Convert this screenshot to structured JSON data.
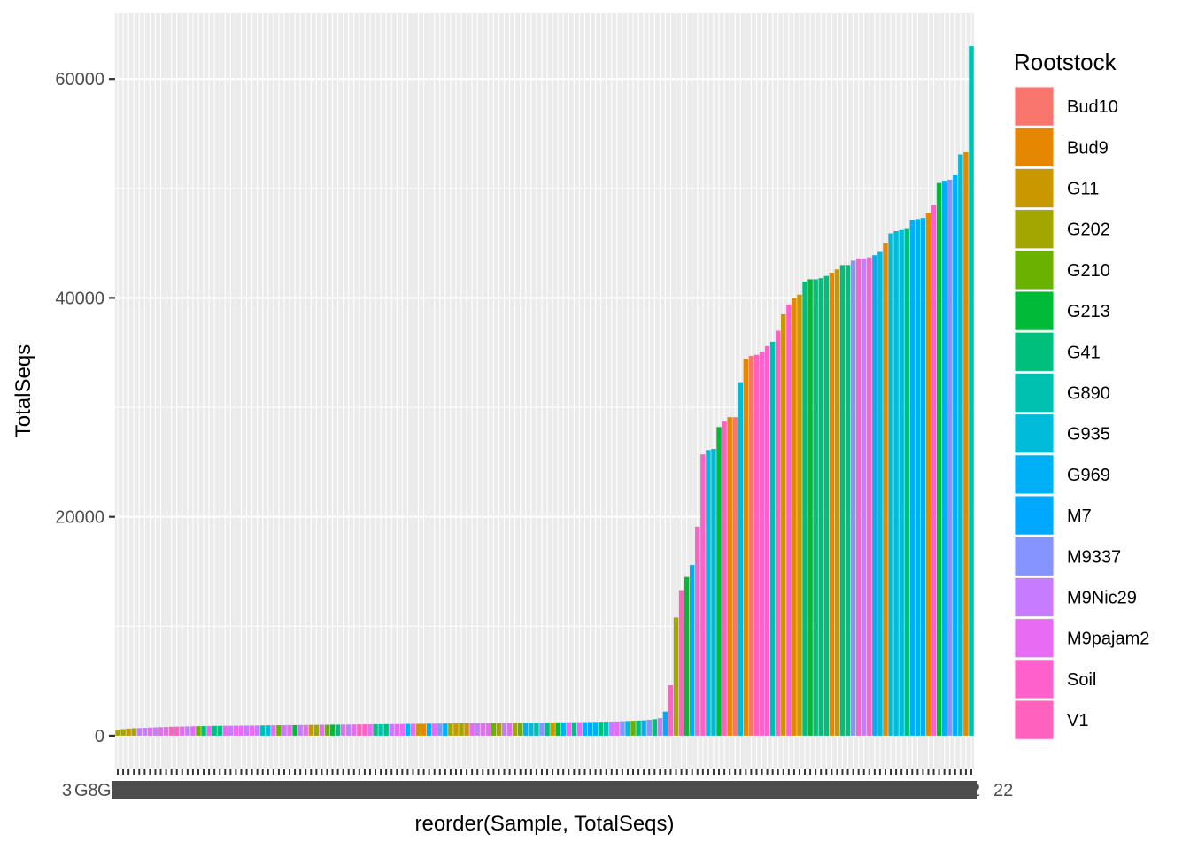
{
  "chart_data": {
    "type": "bar",
    "xlabel": "reorder(Sample, TotalSeqs)",
    "ylabel": "TotalSeqs",
    "ylim": [
      -3000,
      66000
    ],
    "y_ticks": [
      0,
      20000,
      40000,
      60000
    ],
    "y_tick_labels": [
      "0",
      "20000",
      "40000",
      "60000"
    ],
    "grid": true,
    "x_tick_labels_visible": [
      "3",
      "G8",
      "G",
      "2",
      "22"
    ],
    "legend": {
      "title": "Rootstock",
      "placement": "right",
      "entries": [
        {
          "name": "Bud10",
          "color": "#F8766D"
        },
        {
          "name": "Bud9",
          "color": "#E58700"
        },
        {
          "name": "G11",
          "color": "#C99800"
        },
        {
          "name": "G202",
          "color": "#A3A500"
        },
        {
          "name": "G210",
          "color": "#6BB100"
        },
        {
          "name": "G213",
          "color": "#00BA38"
        },
        {
          "name": "G41",
          "color": "#00BF7D"
        },
        {
          "name": "G890",
          "color": "#00C0AF"
        },
        {
          "name": "G935",
          "color": "#00BCD8"
        },
        {
          "name": "G969",
          "color": "#00B0F6"
        },
        {
          "name": "M7",
          "color": "#00A9FF"
        },
        {
          "name": "M9337",
          "color": "#8594FF"
        },
        {
          "name": "M9Nic29",
          "color": "#C77CFF"
        },
        {
          "name": "M9pajam2",
          "color": "#E76BF3"
        },
        {
          "name": "Soil",
          "color": "#FF61CC"
        },
        {
          "name": "V1",
          "color": "#FF62BC"
        }
      ]
    },
    "bars": [
      {
        "g": "G202",
        "v": 550
      },
      {
        "g": "G202",
        "v": 600
      },
      {
        "g": "G11",
        "v": 650
      },
      {
        "g": "G202",
        "v": 680
      },
      {
        "g": "M9Nic29",
        "v": 700
      },
      {
        "g": "M9Nic29",
        "v": 720
      },
      {
        "g": "M9pajam2",
        "v": 740
      },
      {
        "g": "M9Nic29",
        "v": 760
      },
      {
        "g": "M9pajam2",
        "v": 780
      },
      {
        "g": "M9pajam2",
        "v": 800
      },
      {
        "g": "V1",
        "v": 820
      },
      {
        "g": "Soil",
        "v": 830
      },
      {
        "g": "M9pajam2",
        "v": 840
      },
      {
        "g": "M9Nic29",
        "v": 850
      },
      {
        "g": "M9pajam2",
        "v": 860
      },
      {
        "g": "G210",
        "v": 870
      },
      {
        "g": "G41",
        "v": 880
      },
      {
        "g": "M9pajam2",
        "v": 890
      },
      {
        "g": "G41",
        "v": 900
      },
      {
        "g": "G41",
        "v": 900
      },
      {
        "g": "M9pajam2",
        "v": 910
      },
      {
        "g": "M9Nic29",
        "v": 910
      },
      {
        "g": "M9pajam2",
        "v": 920
      },
      {
        "g": "M9pajam2",
        "v": 920
      },
      {
        "g": "M9Nic29",
        "v": 930
      },
      {
        "g": "M9pajam2",
        "v": 930
      },
      {
        "g": "M9Nic29",
        "v": 940
      },
      {
        "g": "G890",
        "v": 940
      },
      {
        "g": "G935",
        "v": 950
      },
      {
        "g": "M9pajam2",
        "v": 950
      },
      {
        "g": "G210",
        "v": 960
      },
      {
        "g": "M9Nic29",
        "v": 960
      },
      {
        "g": "M9pajam2",
        "v": 970
      },
      {
        "g": "G213",
        "v": 970
      },
      {
        "g": "M9Nic29",
        "v": 980
      },
      {
        "g": "M9pajam2",
        "v": 980
      },
      {
        "g": "G11",
        "v": 990
      },
      {
        "g": "G202",
        "v": 990
      },
      {
        "g": "M9pajam2",
        "v": 1000
      },
      {
        "g": "G210",
        "v": 1000
      },
      {
        "g": "G213",
        "v": 1010
      },
      {
        "g": "G41",
        "v": 1010
      },
      {
        "g": "M9pajam2",
        "v": 1020
      },
      {
        "g": "M9Nic29",
        "v": 1020
      },
      {
        "g": "M9pajam2",
        "v": 1030
      },
      {
        "g": "V1",
        "v": 1030
      },
      {
        "g": "Soil",
        "v": 1040
      },
      {
        "g": "M9pajam2",
        "v": 1040
      },
      {
        "g": "G41",
        "v": 1050
      },
      {
        "g": "G890",
        "v": 1050
      },
      {
        "g": "G41",
        "v": 1060
      },
      {
        "g": "M9Nic29",
        "v": 1060
      },
      {
        "g": "M9pajam2",
        "v": 1070
      },
      {
        "g": "M9pajam2",
        "v": 1070
      },
      {
        "g": "G969",
        "v": 1080
      },
      {
        "g": "M9pajam2",
        "v": 1080
      },
      {
        "g": "G11",
        "v": 1090
      },
      {
        "g": "Bud9",
        "v": 1090
      },
      {
        "g": "G969",
        "v": 1100
      },
      {
        "g": "M9pajam2",
        "v": 1100
      },
      {
        "g": "M9337",
        "v": 1110
      },
      {
        "g": "G969",
        "v": 1110
      },
      {
        "g": "G202",
        "v": 1120
      },
      {
        "g": "G11",
        "v": 1120
      },
      {
        "g": "G202",
        "v": 1130
      },
      {
        "g": "G11",
        "v": 1130
      },
      {
        "g": "M9pajam2",
        "v": 1140
      },
      {
        "g": "M9Nic29",
        "v": 1140
      },
      {
        "g": "M9pajam2",
        "v": 1150
      },
      {
        "g": "M9pajam2",
        "v": 1150
      },
      {
        "g": "G210",
        "v": 1160
      },
      {
        "g": "G202",
        "v": 1160
      },
      {
        "g": "M9Nic29",
        "v": 1170
      },
      {
        "g": "M9pajam2",
        "v": 1170
      },
      {
        "g": "G202",
        "v": 1180
      },
      {
        "g": "G210",
        "v": 1180
      },
      {
        "g": "G969",
        "v": 1190
      },
      {
        "g": "G935",
        "v": 1190
      },
      {
        "g": "G890",
        "v": 1200
      },
      {
        "g": "M9337",
        "v": 1200
      },
      {
        "g": "G41",
        "v": 1210
      },
      {
        "g": "G11",
        "v": 1210
      },
      {
        "g": "G213",
        "v": 1220
      },
      {
        "g": "G969",
        "v": 1220
      },
      {
        "g": "M9pajam2",
        "v": 1230
      },
      {
        "g": "G41",
        "v": 1230
      },
      {
        "g": "M9pajam2",
        "v": 1240
      },
      {
        "g": "G969",
        "v": 1240
      },
      {
        "g": "M7",
        "v": 1250
      },
      {
        "g": "G969",
        "v": 1260
      },
      {
        "g": "G41",
        "v": 1270
      },
      {
        "g": "G890",
        "v": 1280
      },
      {
        "g": "M9Nic29",
        "v": 1290
      },
      {
        "g": "M9pajam2",
        "v": 1300
      },
      {
        "g": "M9337",
        "v": 1320
      },
      {
        "g": "G935",
        "v": 1340
      },
      {
        "g": "G210",
        "v": 1360
      },
      {
        "g": "G41",
        "v": 1380
      },
      {
        "g": "G969",
        "v": 1400
      },
      {
        "g": "M9337",
        "v": 1450
      },
      {
        "g": "G41",
        "v": 1500
      },
      {
        "g": "M9Nic29",
        "v": 1600
      },
      {
        "g": "M7",
        "v": 2200
      },
      {
        "g": "Soil",
        "v": 4600
      },
      {
        "g": "G202",
        "v": 10800
      },
      {
        "g": "V1",
        "v": 13300
      },
      {
        "g": "G213",
        "v": 14500
      },
      {
        "g": "G969",
        "v": 15600
      },
      {
        "g": "Soil",
        "v": 19100
      },
      {
        "g": "Soil",
        "v": 25700
      },
      {
        "g": "G935",
        "v": 26100
      },
      {
        "g": "G935",
        "v": 26200
      },
      {
        "g": "G213",
        "v": 28200
      },
      {
        "g": "V1",
        "v": 28700
      },
      {
        "g": "Bud9",
        "v": 29100
      },
      {
        "g": "Bud10",
        "v": 29100
      },
      {
        "g": "G935",
        "v": 32300
      },
      {
        "g": "Bud9",
        "v": 34400
      },
      {
        "g": "Bud10",
        "v": 34700
      },
      {
        "g": "V1",
        "v": 34800
      },
      {
        "g": "Soil",
        "v": 35100
      },
      {
        "g": "Soil",
        "v": 35600
      },
      {
        "g": "G890",
        "v": 36000
      },
      {
        "g": "V1",
        "v": 37000
      },
      {
        "g": "G11",
        "v": 38500
      },
      {
        "g": "Soil",
        "v": 39400
      },
      {
        "g": "Bud9",
        "v": 40000
      },
      {
        "g": "G11",
        "v": 40300
      },
      {
        "g": "G41",
        "v": 41500
      },
      {
        "g": "G213",
        "v": 41700
      },
      {
        "g": "G41",
        "v": 41700
      },
      {
        "g": "G41",
        "v": 41800
      },
      {
        "g": "G41",
        "v": 42000
      },
      {
        "g": "Bud9",
        "v": 42300
      },
      {
        "g": "G11",
        "v": 42600
      },
      {
        "g": "G41",
        "v": 43000
      },
      {
        "g": "G41",
        "v": 43000
      },
      {
        "g": "M9337",
        "v": 43400
      },
      {
        "g": "Soil",
        "v": 43600
      },
      {
        "g": "M9Nic29",
        "v": 43600
      },
      {
        "g": "Soil",
        "v": 43700
      },
      {
        "g": "G969",
        "v": 43900
      },
      {
        "g": "G935",
        "v": 44200
      },
      {
        "g": "Bud9",
        "v": 45000
      },
      {
        "g": "G935",
        "v": 45900
      },
      {
        "g": "G935",
        "v": 46100
      },
      {
        "g": "G935",
        "v": 46200
      },
      {
        "g": "G41",
        "v": 46300
      },
      {
        "g": "G969",
        "v": 47100
      },
      {
        "g": "G969",
        "v": 47200
      },
      {
        "g": "G969",
        "v": 47300
      },
      {
        "g": "Bud9",
        "v": 47800
      },
      {
        "g": "Soil",
        "v": 48500
      },
      {
        "g": "G213",
        "v": 50500
      },
      {
        "g": "G969",
        "v": 50700
      },
      {
        "g": "M9337",
        "v": 50800
      },
      {
        "g": "G969",
        "v": 51200
      },
      {
        "g": "G935",
        "v": 53100
      },
      {
        "g": "Bud9",
        "v": 53300
      },
      {
        "g": "G890",
        "v": 63000
      }
    ]
  }
}
